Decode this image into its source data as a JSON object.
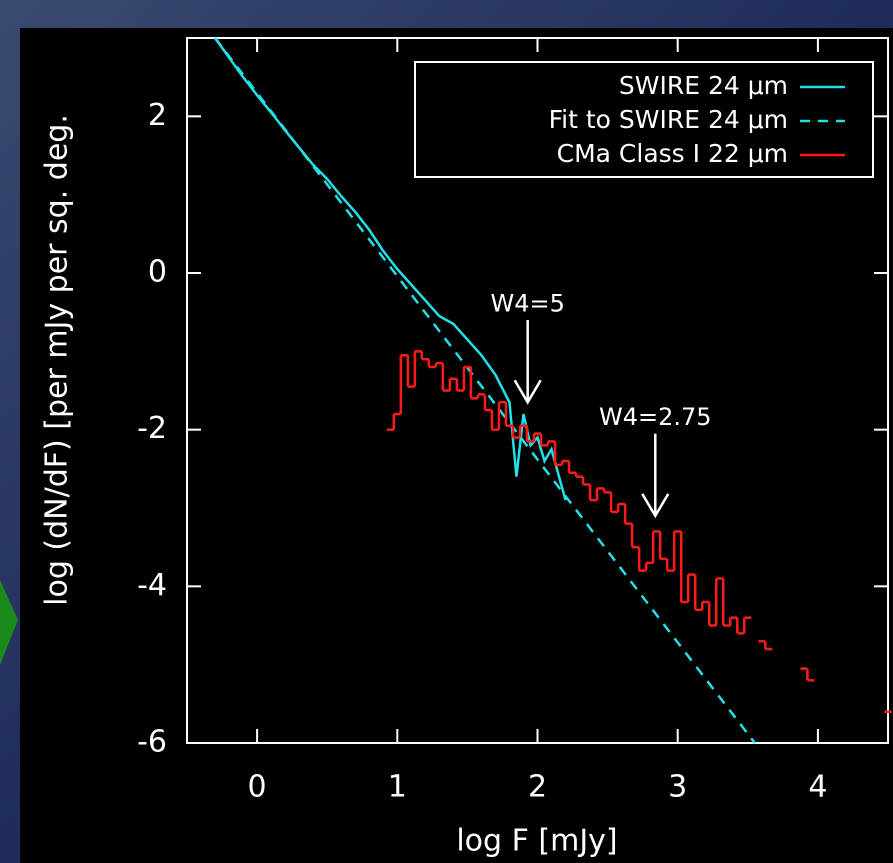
{
  "chart_data": {
    "type": "line",
    "xlabel": "log F [mJy]",
    "ylabel": "log (dN/dF) [per mJy per sq. deg.",
    "xlim": [
      -0.5,
      4.5
    ],
    "ylim": [
      -6,
      3
    ],
    "xticks": [
      0,
      1,
      2,
      3,
      4
    ],
    "yticks": [
      -6,
      -4,
      -2,
      0,
      2
    ],
    "legend": "upper right",
    "series": [
      {
        "name": "SWIRE 24 μm",
        "color": "#22e0e8",
        "style": "solid",
        "x": [
          -0.3,
          -0.2,
          -0.1,
          0,
          0.1,
          0.2,
          0.3,
          0.4,
          0.5,
          0.6,
          0.7,
          0.8,
          0.9,
          1.0,
          1.1,
          1.2,
          1.3,
          1.4,
          1.5,
          1.6,
          1.7,
          1.8,
          1.85,
          1.9,
          1.95,
          2.0,
          2.05,
          2.1,
          2.2
        ],
        "values": [
          3.0,
          2.75,
          2.5,
          2.27,
          2.05,
          1.82,
          1.6,
          1.38,
          1.2,
          0.98,
          0.78,
          0.55,
          0.28,
          0.05,
          -0.15,
          -0.35,
          -0.55,
          -0.65,
          -0.85,
          -1.05,
          -1.3,
          -1.65,
          -2.6,
          -1.8,
          -2.2,
          -2.1,
          -2.4,
          -2.25,
          -2.9
        ]
      },
      {
        "name": "Fit to SWIRE 24 μm",
        "color": "#22e0e8",
        "style": "dashed",
        "x": [
          -0.3,
          0.5,
          1.5,
          2.5,
          3.55
        ],
        "values": [
          3.0,
          1.13,
          -1.21,
          -3.55,
          -6.0
        ]
      },
      {
        "name": "CMa Class I 22 μm",
        "color": "#ff1a1a",
        "style": "step",
        "x": [
          0.95,
          1.0,
          1.05,
          1.1,
          1.15,
          1.2,
          1.25,
          1.3,
          1.35,
          1.4,
          1.45,
          1.5,
          1.55,
          1.6,
          1.65,
          1.7,
          1.75,
          1.8,
          1.85,
          1.9,
          1.95,
          2.0,
          2.05,
          2.1,
          2.15,
          2.2,
          2.25,
          2.3,
          2.35,
          2.4,
          2.45,
          2.5,
          2.55,
          2.6,
          2.65,
          2.7,
          2.75,
          2.8,
          2.85,
          2.9,
          2.95,
          3.0,
          3.05,
          3.1,
          3.15,
          3.2,
          3.25,
          3.3,
          3.35,
          3.4,
          3.45,
          3.5,
          3.6,
          3.65,
          3.9,
          3.95,
          4.5
        ],
        "values": [
          -2.0,
          -1.8,
          -1.05,
          -1.45,
          -1.0,
          -1.1,
          -1.2,
          -1.15,
          -1.5,
          -1.35,
          -1.5,
          -1.2,
          -1.6,
          -1.55,
          -1.75,
          -2.0,
          -1.65,
          -1.95,
          -2.1,
          -1.95,
          -2.15,
          -2.05,
          -2.2,
          -2.15,
          -2.45,
          -2.4,
          -2.55,
          -2.6,
          -2.7,
          -2.9,
          -2.75,
          -2.8,
          -3.05,
          -2.95,
          -3.2,
          -3.5,
          -3.8,
          -3.7,
          -3.3,
          -3.65,
          -3.8,
          -3.3,
          -4.2,
          -3.85,
          -4.3,
          -4.2,
          -4.5,
          -3.9,
          -4.5,
          -4.4,
          -4.6,
          -4.4,
          -4.7,
          -4.8,
          -5.05,
          -5.2,
          -5.6
        ]
      }
    ],
    "annotations": [
      {
        "text": "W4=5",
        "x": 1.93,
        "y": -0.4,
        "arrow_from": -0.6,
        "arrow_to": -1.65
      },
      {
        "text": "W4=2.75",
        "x": 2.84,
        "y": -1.85,
        "arrow_from": -2.05,
        "arrow_to": -3.1
      }
    ]
  }
}
